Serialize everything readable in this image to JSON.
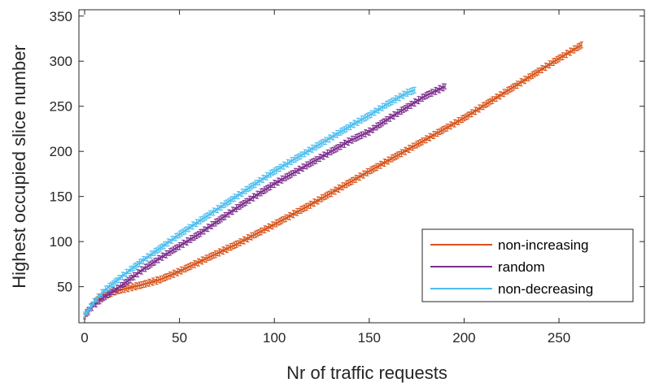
{
  "chart_data": {
    "type": "line",
    "xlabel": "Nr of traffic requests",
    "ylabel": "Highest occupied slice number",
    "xlim": [
      -3,
      295
    ],
    "ylim": [
      10,
      357
    ],
    "xticks": [
      0,
      50,
      100,
      150,
      200,
      250
    ],
    "yticks": [
      50,
      100,
      150,
      200,
      250,
      300,
      350
    ],
    "grid": false,
    "legend_position": "bottom-right",
    "series": [
      {
        "name": "non-increasing",
        "color": "#D95319",
        "errorbars": true,
        "x": [
          0,
          5,
          10,
          15,
          20,
          30,
          40,
          50,
          60,
          80,
          100,
          120,
          150,
          200,
          250,
          262
        ],
        "y": [
          18,
          33,
          40,
          44,
          47,
          52,
          58,
          67,
          77,
          97,
          119,
          142,
          178,
          237,
          303,
          318
        ]
      },
      {
        "name": "random",
        "color": "#7E2F8E",
        "errorbars": true,
        "x": [
          0,
          5,
          10,
          20,
          30,
          40,
          50,
          60,
          80,
          100,
          120,
          140,
          150,
          160,
          170,
          180,
          190
        ],
        "y": [
          18,
          30,
          38,
          52,
          68,
          82,
          95,
          108,
          137,
          164,
          188,
          212,
          222,
          236,
          249,
          262,
          272
        ]
      },
      {
        "name": "non-decreasing",
        "color": "#4DBEEE",
        "errorbars": true,
        "x": [
          0,
          5,
          10,
          20,
          30,
          40,
          50,
          60,
          80,
          100,
          120,
          140,
          150,
          160,
          170,
          174
        ],
        "y": [
          18,
          33,
          45,
          62,
          78,
          93,
          108,
          122,
          150,
          178,
          203,
          228,
          240,
          253,
          265,
          268
        ]
      }
    ]
  }
}
